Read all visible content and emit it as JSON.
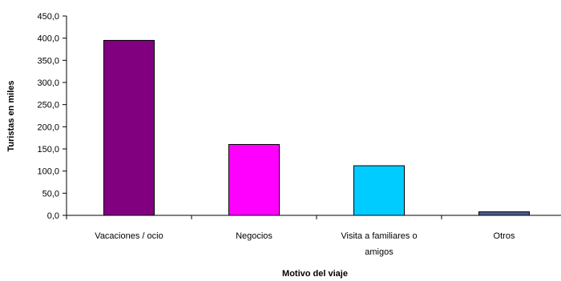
{
  "chart_data": {
    "type": "bar",
    "categories": [
      "Vacaciones / ocio",
      "Negocios",
      "Visita a familiares o amigos",
      "Otros"
    ],
    "category_label_lines": [
      [
        "Vacaciones / ocio"
      ],
      [
        "Negocios"
      ],
      [
        "Visita a familiares o",
        "amigos"
      ],
      [
        "Otros"
      ]
    ],
    "values": [
      395.0,
      160.0,
      112.0,
      8.0
    ],
    "colors": [
      "#800080",
      "#ff00ff",
      "#00ccff",
      "#4b5a8c"
    ],
    "xlabel": "Motivo del viaje",
    "ylabel": "Turistas en miles",
    "ylim": [
      0,
      450
    ],
    "yticks": [
      "0,0",
      "50,0",
      "100,0",
      "150,0",
      "200,0",
      "250,0",
      "300,0",
      "350,0",
      "400,0",
      "450,0"
    ],
    "grid": false,
    "legend": "none"
  }
}
